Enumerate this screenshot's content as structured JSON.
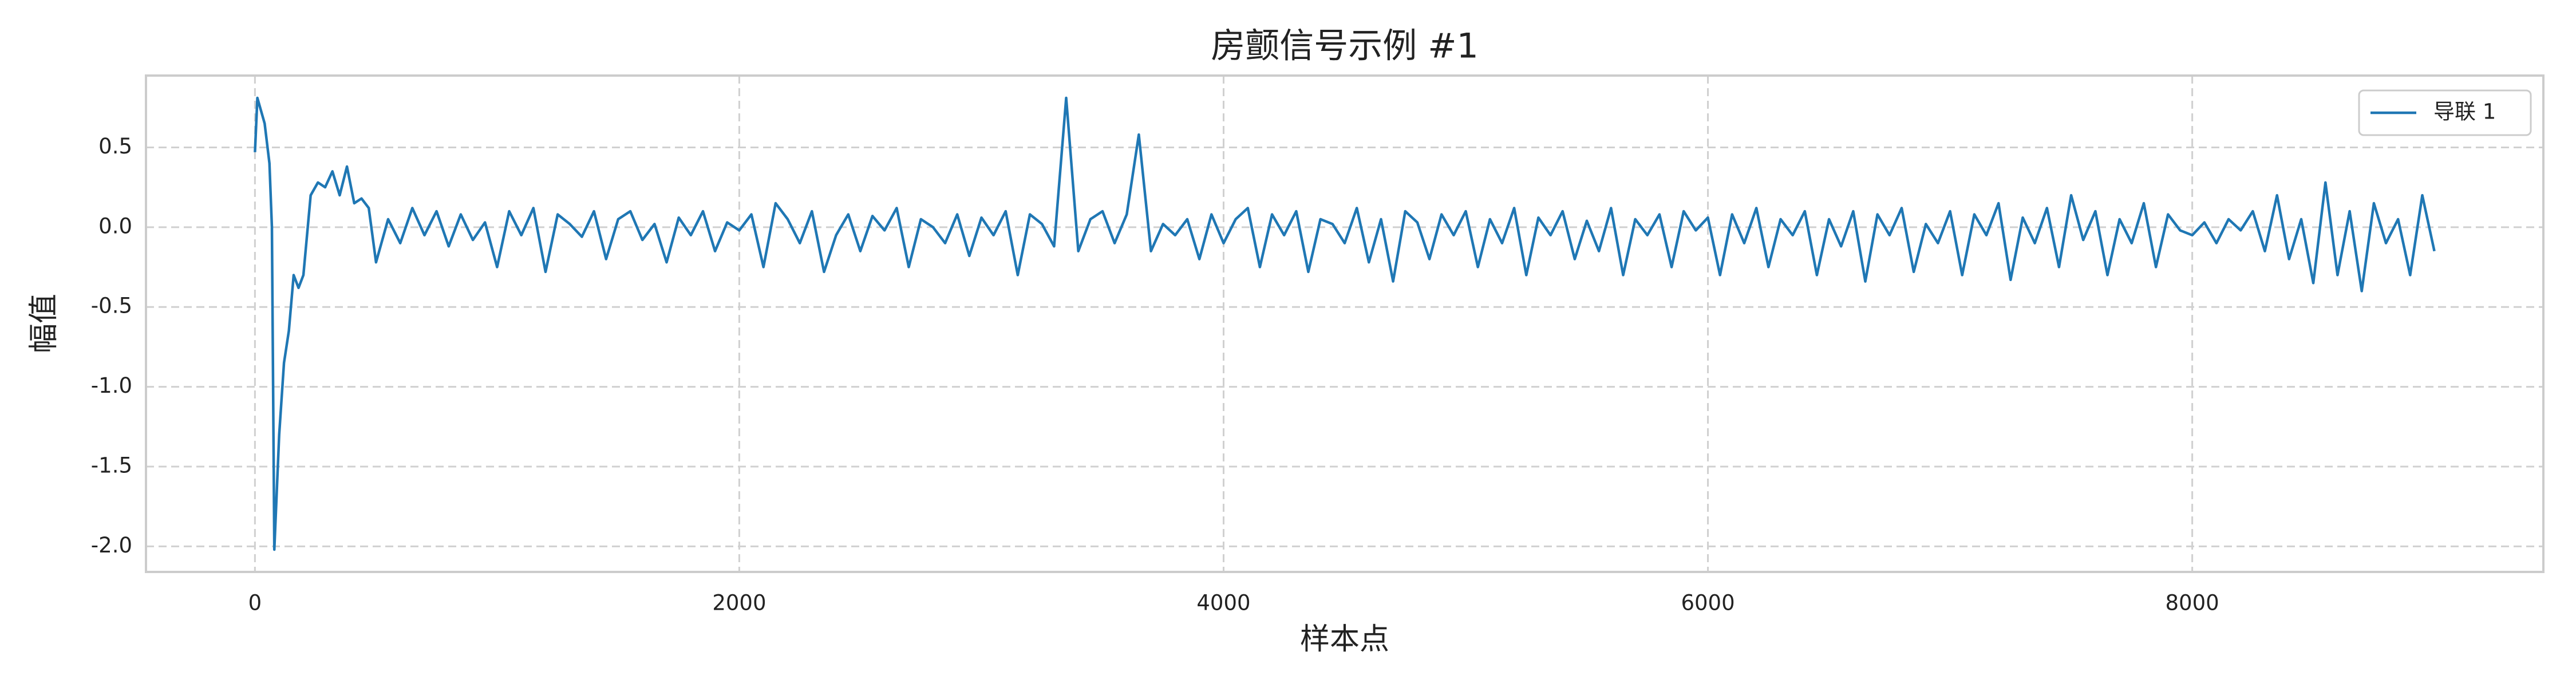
{
  "chart_data": {
    "type": "line",
    "title": "房颤信号示例 #1",
    "xlabel": "样本点",
    "ylabel": "幅值",
    "x": [
      0,
      10,
      40,
      60,
      70,
      80,
      100,
      120,
      140,
      160,
      180,
      200,
      230,
      260,
      290,
      320,
      350,
      380,
      410,
      440,
      470,
      500,
      550,
      600,
      650,
      700,
      750,
      800,
      850,
      900,
      950,
      1000,
      1050,
      1100,
      1150,
      1200,
      1250,
      1300,
      1350,
      1400,
      1450,
      1500,
      1550,
      1600,
      1650,
      1700,
      1750,
      1800,
      1850,
      1900,
      1950,
      2000,
      2050,
      2100,
      2150,
      2200,
      2250,
      2300,
      2350,
      2400,
      2450,
      2500,
      2550,
      2600,
      2650,
      2700,
      2750,
      2800,
      2850,
      2900,
      2950,
      3000,
      3050,
      3100,
      3150,
      3200,
      3250,
      3300,
      3350,
      3400,
      3450,
      3500,
      3550,
      3600,
      3650,
      3700,
      3750,
      3800,
      3850,
      3900,
      3950,
      4000,
      4050,
      4100,
      4150,
      4200,
      4250,
      4300,
      4350,
      4400,
      4450,
      4500,
      4550,
      4600,
      4650,
      4700,
      4750,
      4800,
      4850,
      4900,
      4950,
      5000,
      5050,
      5100,
      5150,
      5200,
      5250,
      5300,
      5350,
      5400,
      5450,
      5500,
      5550,
      5600,
      5650,
      5700,
      5750,
      5800,
      5850,
      5900,
      5950,
      6000,
      6050,
      6100,
      6150,
      6200,
      6250,
      6300,
      6350,
      6400,
      6450,
      6500,
      6550,
      6600,
      6650,
      6700,
      6750,
      6800,
      6850,
      6900,
      6950,
      7000,
      7050,
      7100,
      7150,
      7200,
      7250,
      7300,
      7350,
      7400,
      7450,
      7500,
      7550,
      7600,
      7650,
      7700,
      7750,
      7800,
      7850,
      7900,
      7950,
      8000,
      8050,
      8100,
      8150,
      8200,
      8250,
      8300,
      8350,
      8400,
      8450,
      8500,
      8550,
      8600,
      8650,
      8700,
      8750,
      8800,
      8850,
      8900,
      8950,
      9000
    ],
    "series": [
      {
        "name": "导联 1",
        "color": "#1f77b4",
        "values": [
          0.47,
          0.81,
          0.65,
          0.4,
          0.0,
          -2.02,
          -1.3,
          -0.85,
          -0.65,
          -0.3,
          -0.38,
          -0.3,
          0.2,
          0.28,
          0.25,
          0.35,
          0.2,
          0.38,
          0.15,
          0.18,
          0.12,
          -0.22,
          0.05,
          -0.1,
          0.12,
          -0.05,
          0.1,
          -0.12,
          0.08,
          -0.08,
          0.03,
          -0.25,
          0.1,
          -0.05,
          0.12,
          -0.28,
          0.08,
          0.02,
          -0.06,
          0.1,
          -0.2,
          0.05,
          0.1,
          -0.08,
          0.02,
          -0.22,
          0.06,
          -0.05,
          0.1,
          -0.15,
          0.03,
          -0.02,
          0.08,
          -0.25,
          0.15,
          0.05,
          -0.1,
          0.1,
          -0.28,
          -0.05,
          0.08,
          -0.15,
          0.07,
          -0.02,
          0.12,
          -0.25,
          0.05,
          0.0,
          -0.1,
          0.08,
          -0.18,
          0.06,
          -0.05,
          0.1,
          -0.3,
          0.08,
          0.02,
          -0.12,
          0.81,
          -0.15,
          0.05,
          0.1,
          -0.1,
          0.08,
          0.58,
          -0.15,
          0.02,
          -0.05,
          0.05,
          -0.2,
          0.08,
          -0.1,
          0.05,
          0.12,
          -0.25,
          0.08,
          -0.05,
          0.1,
          -0.28,
          0.05,
          0.02,
          -0.1,
          0.12,
          -0.22,
          0.05,
          -0.34,
          0.1,
          0.03,
          -0.2,
          0.08,
          -0.05,
          0.1,
          -0.25,
          0.05,
          -0.1,
          0.12,
          -0.3,
          0.06,
          -0.05,
          0.1,
          -0.2,
          0.04,
          -0.15,
          0.12,
          -0.3,
          0.05,
          -0.05,
          0.08,
          -0.25,
          0.1,
          -0.02,
          0.06,
          -0.3,
          0.08,
          -0.1,
          0.12,
          -0.25,
          0.05,
          -0.05,
          0.1,
          -0.3,
          0.05,
          -0.12,
          0.1,
          -0.34,
          0.08,
          -0.05,
          0.12,
          -0.28,
          0.02,
          -0.1,
          0.1,
          -0.3,
          0.08,
          -0.05,
          0.15,
          -0.33,
          0.06,
          -0.1,
          0.12,
          -0.25,
          0.2,
          -0.08,
          0.1,
          -0.3,
          0.05,
          -0.1,
          0.15,
          -0.25,
          0.08,
          -0.02,
          -0.05,
          0.03,
          -0.1,
          0.05,
          -0.02,
          0.1,
          -0.15,
          0.2,
          -0.2,
          0.05,
          -0.35,
          0.28,
          -0.3,
          0.1,
          -0.4,
          0.15,
          -0.1,
          0.05,
          -0.3,
          0.2,
          -0.15
        ]
      }
    ],
    "xlim": [
      -450,
      9450
    ],
    "ylim": [
      -2.16,
      0.95
    ],
    "xticks": [
      0,
      2000,
      4000,
      6000,
      8000
    ],
    "yticks": [
      {
        "value": -2.0,
        "label": "-2.0"
      },
      -1.5,
      {
        "value": -1.0,
        "label": "-1.0"
      },
      -0.5,
      {
        "value": 0.0,
        "label": "0.0"
      },
      0.5
    ],
    "grid": true,
    "legend": "upper right"
  }
}
